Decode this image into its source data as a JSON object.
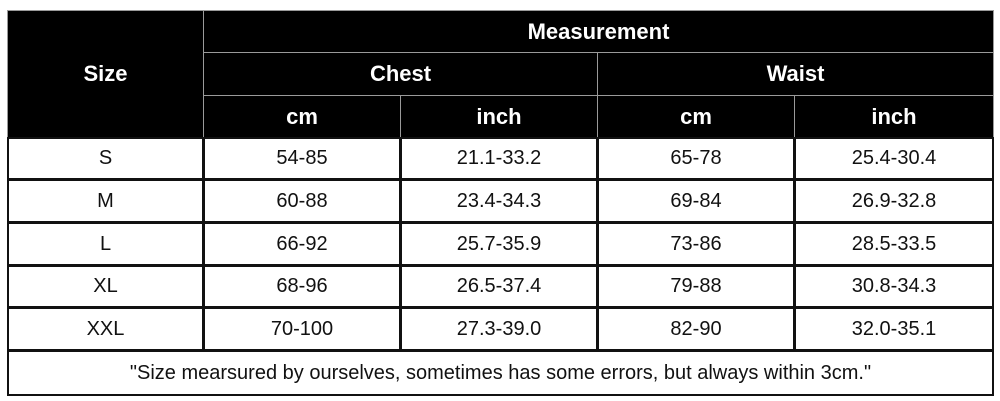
{
  "table": {
    "header": {
      "size": "Size",
      "measurement": "Measurement",
      "groups": [
        "Chest",
        "Waist"
      ],
      "units": [
        "cm",
        "inch",
        "cm",
        "inch"
      ]
    },
    "rows": [
      [
        "S",
        "54-85",
        "21.1-33.2",
        "65-78",
        "25.4-30.4"
      ],
      [
        "M",
        "60-88",
        "23.4-34.3",
        "69-84",
        "26.9-32.8"
      ],
      [
        "L",
        "66-92",
        "25.7-35.9",
        "73-86",
        "28.5-33.5"
      ],
      [
        "XL",
        "68-96",
        "26.5-37.4",
        "79-88",
        "30.8-34.3"
      ],
      [
        "XXL",
        "70-100",
        "27.3-39.0",
        "82-90",
        "32.0-35.1"
      ]
    ],
    "note": "\"Size mearsured by ourselves, sometimes has some errors, but always within 3cm.\""
  }
}
